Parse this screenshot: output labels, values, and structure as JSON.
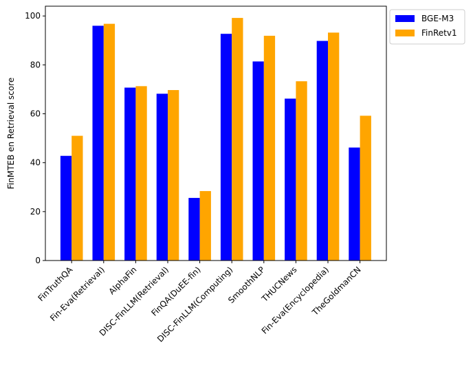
{
  "chart_data": {
    "type": "bar",
    "title": "",
    "xlabel": "",
    "ylabel": "FinMTEB en Retrieval score",
    "ylim": [
      0,
      104
    ],
    "yticks": [
      0,
      20,
      40,
      60,
      80,
      100
    ],
    "grid": false,
    "legend_position": "outside-top-right",
    "categories": [
      "FinTruthQA",
      "Fin-Eva(Retrieval)",
      "AlphaFin",
      "DISC-FinLLM(Retrieval)",
      "FinQA(DuEE-fin)",
      "DISC-FinLLM(Computing)",
      "SmoothNLP",
      "THUCNews",
      "Fin-Eva(Encyclopedia)",
      "TheGoldmanCN"
    ],
    "series": [
      {
        "name": "BGE-M3",
        "color": "#0000ff",
        "values": [
          42.8,
          96.0,
          70.7,
          68.2,
          25.6,
          92.7,
          81.4,
          66.2,
          89.8,
          46.2
        ]
      },
      {
        "name": "FinRetv1",
        "color": "#ffa500",
        "values": [
          51.0,
          96.8,
          71.3,
          69.7,
          28.4,
          99.2,
          91.9,
          73.3,
          93.2,
          59.2
        ]
      }
    ]
  }
}
